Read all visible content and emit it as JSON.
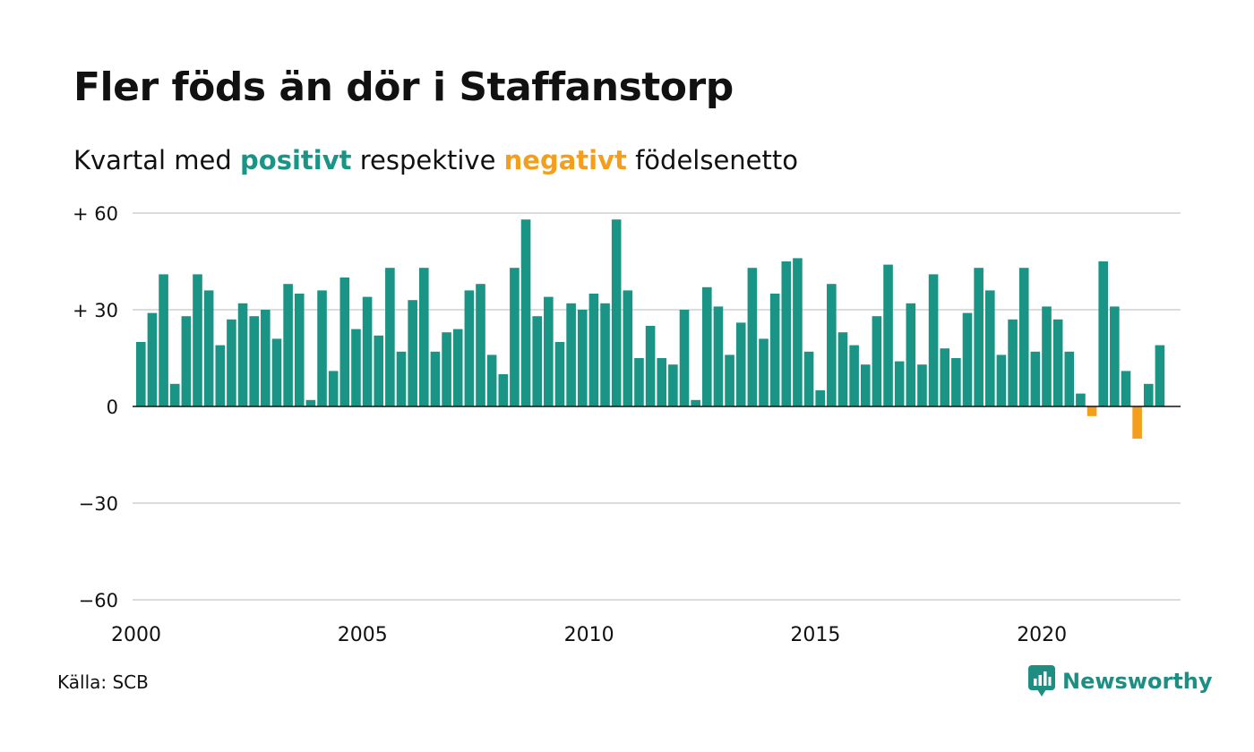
{
  "header": {
    "title": "Fler föds än dör i Staffanstorp",
    "subtitle_pre": "Kvartal med",
    "subtitle_pos": "positivt",
    "subtitle_mid": "respektive",
    "subtitle_neg": "negativt",
    "subtitle_post": "födelsenetto"
  },
  "footer": {
    "source": "Källa: SCB",
    "brand": "Newsworthy"
  },
  "colors": {
    "positive": "#1a9485",
    "negative": "#f59e1b",
    "grid": "#dcdcdc",
    "axis": "#111111",
    "brand": "#1f8e82"
  },
  "icons": {
    "brand_logo": "newsworthy-bar-chart-icon"
  },
  "chart_data": {
    "type": "bar",
    "title": "Fler föds än dör i Staffanstorp",
    "subtitle": "Kvartal med positivt respektive negativt födelsenetto",
    "xlabel": "",
    "ylabel": "",
    "ylim": [
      -60,
      60
    ],
    "grid": true,
    "y_ticks": [
      {
        "value": 60,
        "label": "+ 60"
      },
      {
        "value": 30,
        "label": "+ 30"
      },
      {
        "value": 0,
        "label": "0"
      },
      {
        "value": -30,
        "label": "−30"
      },
      {
        "value": -60,
        "label": "−60"
      }
    ],
    "x_ticks": [
      "2000",
      "2005",
      "2010",
      "2015",
      "2020"
    ],
    "start_year": 2000,
    "values": [
      20,
      29,
      41,
      7,
      28,
      41,
      36,
      19,
      27,
      32,
      28,
      30,
      21,
      38,
      35,
      2,
      36,
      11,
      40,
      24,
      34,
      22,
      43,
      17,
      33,
      43,
      17,
      23,
      24,
      36,
      38,
      16,
      10,
      43,
      58,
      28,
      34,
      20,
      32,
      30,
      35,
      32,
      58,
      36,
      15,
      25,
      15,
      13,
      30,
      2,
      37,
      31,
      16,
      26,
      43,
      21,
      35,
      45,
      46,
      17,
      5,
      38,
      23,
      19,
      13,
      28,
      44,
      14,
      32,
      13,
      41,
      18,
      15,
      29,
      43,
      36,
      16,
      27,
      43,
      17,
      31,
      27,
      17,
      4,
      -3,
      45,
      31,
      11,
      -10,
      7,
      19
    ]
  }
}
